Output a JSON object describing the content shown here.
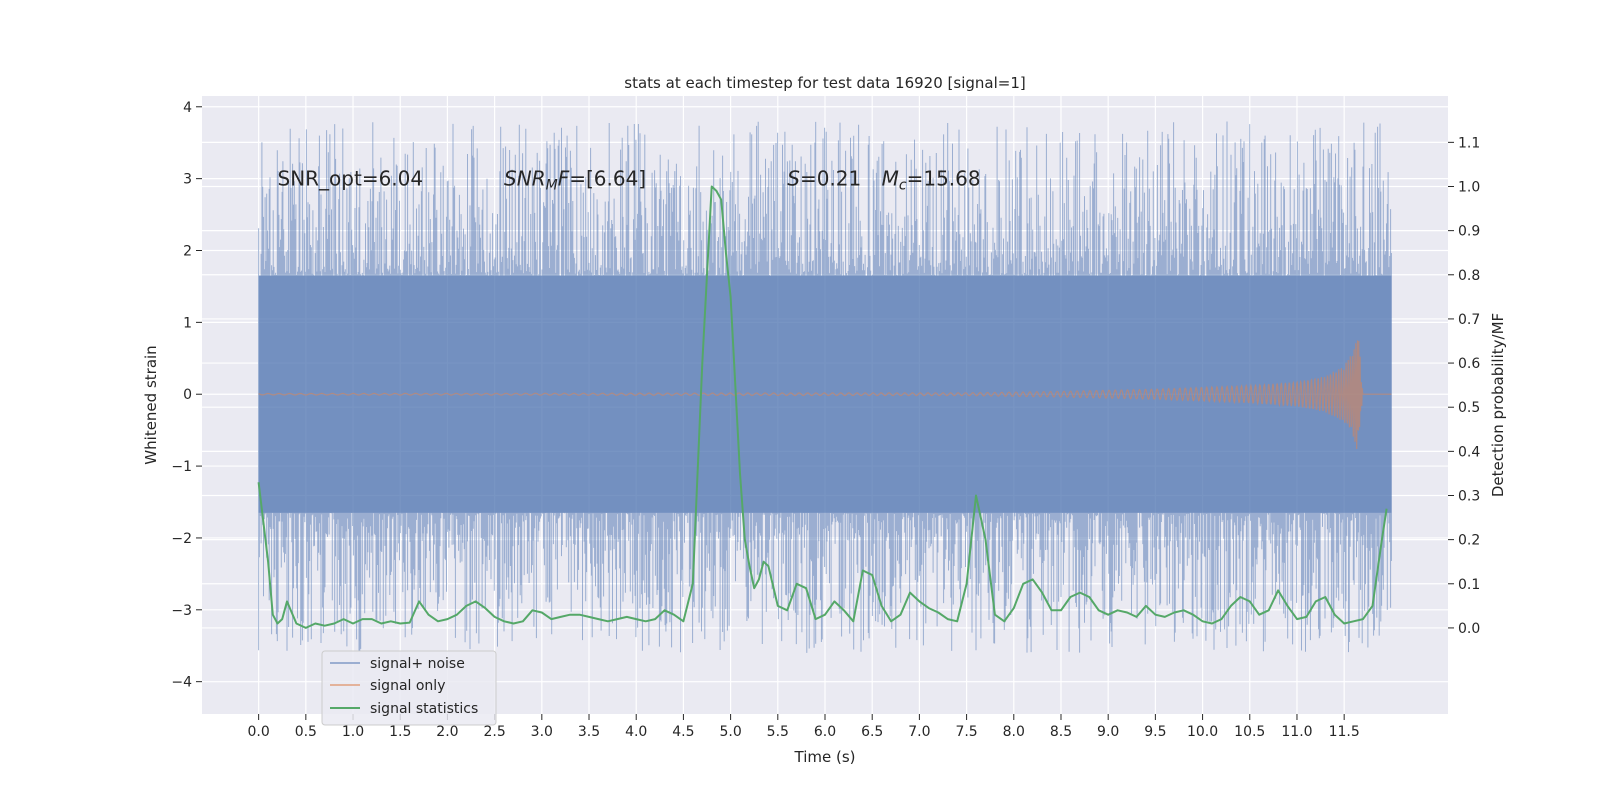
{
  "chart_data": {
    "type": "line",
    "title": "stats at each timestep for test data 16920 [signal=1]",
    "xlabel": "Time (s)",
    "ylabel": "Whitened strain",
    "y2label": "Detection probability/MF",
    "xlim": [
      -0.6,
      12.6
    ],
    "ylim": [
      -4.45,
      4.15
    ],
    "y2lim": [
      -0.195,
      1.205
    ],
    "xticks": [
      0.0,
      0.5,
      1.0,
      1.5,
      2.0,
      2.5,
      3.0,
      3.5,
      4.0,
      4.5,
      5.0,
      5.5,
      6.0,
      6.5,
      7.0,
      7.5,
      8.0,
      8.5,
      9.0,
      9.5,
      10.0,
      10.5,
      11.0,
      11.5
    ],
    "xtick_labels": [
      "0.0",
      "0.5",
      "1.0",
      "1.5",
      "2.0",
      "2.5",
      "3.0",
      "3.5",
      "4.0",
      "4.5",
      "5.0",
      "5.5",
      "6.0",
      "6.5",
      "7.0",
      "7.5",
      "8.0",
      "8.5",
      "9.0",
      "9.5",
      "10.0",
      "10.5",
      "11.0",
      "11.5"
    ],
    "yticks": [
      -4,
      -3,
      -2,
      -1,
      0,
      1,
      2,
      3,
      4
    ],
    "ytick_labels": [
      "−4",
      "−3",
      "−2",
      "−1",
      "0",
      "1",
      "2",
      "3",
      "4"
    ],
    "y2ticks": [
      0.0,
      0.1,
      0.2,
      0.3,
      0.4,
      0.5,
      0.6,
      0.7,
      0.8,
      0.9,
      1.0,
      1.1
    ],
    "y2tick_labels": [
      "0.0",
      "0.1",
      "0.2",
      "0.3",
      "0.4",
      "0.5",
      "0.6",
      "0.7",
      "0.8",
      "0.9",
      "1.0",
      "1.1"
    ],
    "grid": true,
    "legend_position": "lower-left",
    "annotations": [
      {
        "text": "SNR_opt=6.04",
        "x": 0.2,
        "y": 3.0
      },
      {
        "text_parts": [
          "SNR",
          "M",
          "F=[6.64]"
        ],
        "x": 2.6,
        "y": 3.0
      },
      {
        "text_parts": [
          "S",
          "=0.21"
        ],
        "x": 5.6,
        "y": 3.0
      },
      {
        "text_parts": [
          "M",
          "c",
          "=15.68"
        ],
        "x": 6.6,
        "y": 3.0
      }
    ],
    "series": [
      {
        "name": "signal+ noise",
        "color": "#4c72b0",
        "opacity": 0.5,
        "axis": "left",
        "kind": "noise-band",
        "t_range": [
          0.0,
          12.0
        ],
        "core_amplitude": 1.65,
        "peak_amplitude_max": 3.8,
        "peak_amplitude_min": -3.6
      },
      {
        "name": "signal only",
        "color": "#dd8452",
        "opacity": 0.55,
        "axis": "left",
        "kind": "chirp",
        "envelope_t": [
          0.0,
          7.5,
          8.5,
          9.5,
          10.5,
          11.0,
          11.3,
          11.5,
          11.6,
          11.65,
          11.7
        ],
        "envelope_amp": [
          0.01,
          0.02,
          0.04,
          0.07,
          0.12,
          0.17,
          0.25,
          0.4,
          0.6,
          0.85,
          0.0
        ]
      },
      {
        "name": "signal statistics",
        "color": "#55a868",
        "axis": "right",
        "x": [
          0.0,
          0.1,
          0.15,
          0.2,
          0.25,
          0.3,
          0.4,
          0.5,
          0.6,
          0.7,
          0.8,
          0.9,
          1.0,
          1.1,
          1.2,
          1.3,
          1.4,
          1.5,
          1.6,
          1.7,
          1.8,
          1.9,
          2.0,
          2.1,
          2.2,
          2.3,
          2.4,
          2.5,
          2.6,
          2.7,
          2.8,
          2.9,
          3.0,
          3.1,
          3.2,
          3.3,
          3.4,
          3.5,
          3.6,
          3.7,
          3.8,
          3.9,
          4.0,
          4.1,
          4.2,
          4.3,
          4.4,
          4.5,
          4.6,
          4.7,
          4.8,
          4.85,
          4.9,
          4.95,
          5.0,
          5.05,
          5.1,
          5.15,
          5.2,
          5.25,
          5.3,
          5.35,
          5.4,
          5.5,
          5.6,
          5.7,
          5.8,
          5.9,
          6.0,
          6.1,
          6.2,
          6.3,
          6.4,
          6.5,
          6.6,
          6.7,
          6.8,
          6.9,
          7.0,
          7.1,
          7.2,
          7.3,
          7.4,
          7.5,
          7.6,
          7.7,
          7.8,
          7.9,
          8.0,
          8.1,
          8.2,
          8.3,
          8.4,
          8.5,
          8.6,
          8.7,
          8.8,
          8.9,
          9.0,
          9.1,
          9.2,
          9.3,
          9.4,
          9.5,
          9.6,
          9.7,
          9.8,
          9.9,
          10.0,
          10.1,
          10.2,
          10.3,
          10.4,
          10.5,
          10.6,
          10.7,
          10.8,
          10.9,
          11.0,
          11.1,
          11.2,
          11.3,
          11.4,
          11.5,
          11.6,
          11.7,
          11.8,
          11.9,
          11.95
        ],
        "y": [
          0.33,
          0.15,
          0.03,
          0.01,
          0.02,
          0.06,
          0.01,
          0.0,
          0.01,
          0.005,
          0.01,
          0.02,
          0.01,
          0.02,
          0.02,
          0.01,
          0.015,
          0.01,
          0.012,
          0.06,
          0.03,
          0.015,
          0.02,
          0.03,
          0.05,
          0.06,
          0.045,
          0.025,
          0.015,
          0.01,
          0.015,
          0.04,
          0.035,
          0.02,
          0.025,
          0.03,
          0.03,
          0.025,
          0.02,
          0.015,
          0.02,
          0.025,
          0.02,
          0.015,
          0.02,
          0.04,
          0.03,
          0.015,
          0.1,
          0.6,
          1.0,
          0.99,
          0.97,
          0.85,
          0.75,
          0.55,
          0.35,
          0.2,
          0.14,
          0.09,
          0.11,
          0.15,
          0.14,
          0.05,
          0.04,
          0.1,
          0.09,
          0.02,
          0.03,
          0.06,
          0.04,
          0.015,
          0.13,
          0.12,
          0.05,
          0.015,
          0.03,
          0.08,
          0.06,
          0.045,
          0.035,
          0.02,
          0.015,
          0.1,
          0.3,
          0.2,
          0.03,
          0.015,
          0.045,
          0.1,
          0.11,
          0.08,
          0.04,
          0.04,
          0.07,
          0.08,
          0.07,
          0.04,
          0.03,
          0.04,
          0.035,
          0.025,
          0.05,
          0.03,
          0.025,
          0.035,
          0.04,
          0.03,
          0.015,
          0.01,
          0.02,
          0.05,
          0.07,
          0.06,
          0.03,
          0.04,
          0.085,
          0.05,
          0.02,
          0.025,
          0.06,
          0.07,
          0.03,
          0.01,
          0.015,
          0.02,
          0.05,
          0.2,
          0.27
        ]
      }
    ]
  }
}
